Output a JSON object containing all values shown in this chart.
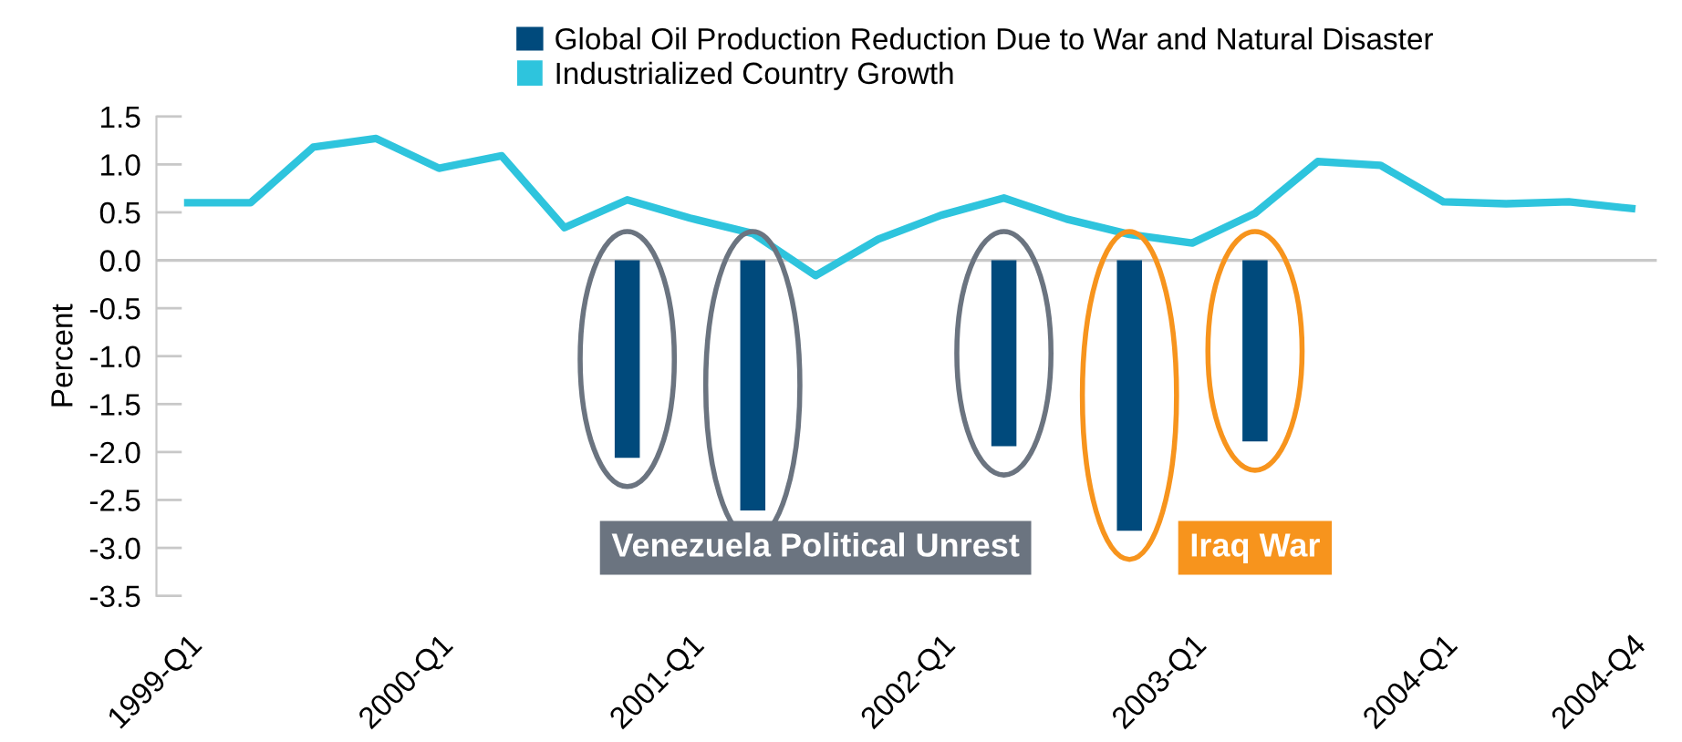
{
  "chart_data": {
    "type": "bar",
    "ylabel": "Percent",
    "categories": [
      "1999-Q1",
      null,
      null,
      null,
      "2000-Q1",
      null,
      null,
      null,
      "2001-Q1",
      null,
      null,
      null,
      "2002-Q1",
      null,
      null,
      null,
      "2003-Q1",
      null,
      null,
      null,
      "2004-Q1",
      null,
      null,
      "2004-Q4"
    ],
    "series": [
      {
        "name": "Global Oil Production Reduction Due to War and Natural Disaster",
        "color": "#004a7c",
        "values": [
          null,
          null,
          null,
          null,
          null,
          null,
          null,
          -2.06,
          null,
          -2.61,
          null,
          null,
          null,
          -1.94,
          null,
          -2.82,
          null,
          -1.89,
          null,
          null,
          null,
          null,
          null,
          null
        ]
      },
      {
        "name": "Industrialized Country Growth",
        "type": "line",
        "color": "#2ec4dd",
        "values": [
          0.6,
          0.6,
          1.18,
          1.27,
          0.96,
          1.09,
          0.34,
          0.63,
          0.44,
          0.28,
          -0.16,
          0.22,
          0.47,
          0.65,
          0.43,
          0.27,
          0.18,
          0.49,
          1.03,
          0.99,
          0.61,
          0.59,
          0.61,
          0.54
        ]
      }
    ],
    "ylim": [
      -3.5,
      1.5
    ],
    "yticks": [
      1.5,
      {
        "value": 1,
        "label": "1.0"
      },
      0.5,
      {
        "value": 0,
        "label": "0.0"
      },
      -0.5,
      {
        "value": -1,
        "label": "-1.0"
      },
      -1.5,
      {
        "value": -2,
        "label": "-2.0"
      },
      -2.5,
      {
        "value": -3,
        "label": "-3.0"
      },
      -3.5
    ],
    "ref_lines": [
      {
        "axis": "y",
        "value": 0,
        "color": "#c8c8c8"
      }
    ],
    "annotations": [
      "Venezuela Political Unrest",
      "Iraq War"
    ],
    "legend": "top",
    "grid": false,
    "marker": "none"
  }
}
